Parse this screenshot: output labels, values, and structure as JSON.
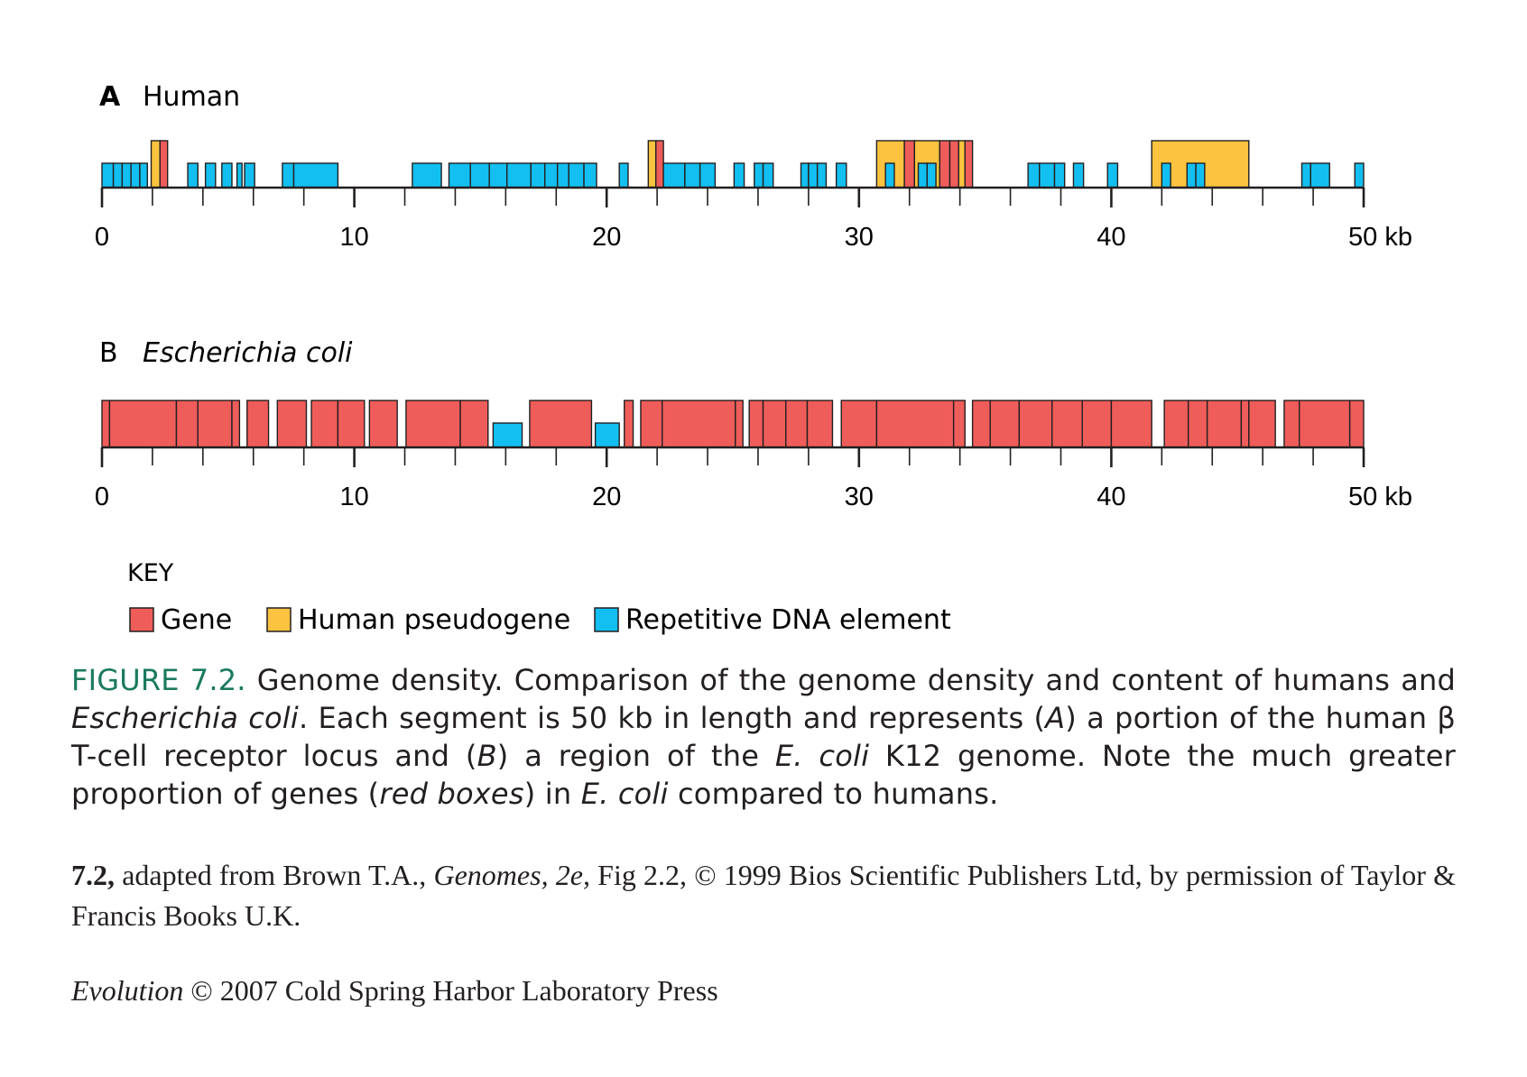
{
  "colors": {
    "gene": "#ef5d5a",
    "pseudogene": "#fbc33f",
    "repetitive": "#12bff0",
    "stroke": "#231f20",
    "figure_label": "#1a7a5e"
  },
  "panels": [
    {
      "letter": "A",
      "name": "Human",
      "tick_labels": [
        "0",
        "10",
        "20",
        "30",
        "40",
        "50 kb"
      ],
      "features": [
        {
          "type": "repetitive",
          "start": 0.0,
          "end": 0.45
        },
        {
          "type": "repetitive",
          "start": 0.45,
          "end": 0.8
        },
        {
          "type": "repetitive",
          "start": 0.8,
          "end": 1.15
        },
        {
          "type": "repetitive",
          "start": 1.15,
          "end": 1.5
        },
        {
          "type": "repetitive",
          "start": 1.5,
          "end": 1.8
        },
        {
          "type": "pseudogene",
          "start": 1.95,
          "end": 2.3,
          "tall": true
        },
        {
          "type": "gene",
          "start": 2.3,
          "end": 2.6,
          "tall": true
        },
        {
          "type": "repetitive",
          "start": 3.4,
          "end": 3.8
        },
        {
          "type": "repetitive",
          "start": 4.1,
          "end": 4.5
        },
        {
          "type": "repetitive",
          "start": 4.75,
          "end": 5.15
        },
        {
          "type": "repetitive",
          "start": 5.35,
          "end": 5.55
        },
        {
          "type": "repetitive",
          "start": 5.65,
          "end": 6.05
        },
        {
          "type": "repetitive",
          "start": 7.15,
          "end": 7.6
        },
        {
          "type": "repetitive",
          "start": 7.6,
          "end": 9.35
        },
        {
          "type": "repetitive",
          "start": 12.3,
          "end": 13.45
        },
        {
          "type": "repetitive",
          "start": 13.75,
          "end": 14.6
        },
        {
          "type": "repetitive",
          "start": 14.6,
          "end": 15.35
        },
        {
          "type": "repetitive",
          "start": 15.35,
          "end": 16.05
        },
        {
          "type": "repetitive",
          "start": 16.05,
          "end": 17.0
        },
        {
          "type": "repetitive",
          "start": 17.0,
          "end": 17.55
        },
        {
          "type": "repetitive",
          "start": 17.55,
          "end": 18.05
        },
        {
          "type": "repetitive",
          "start": 18.05,
          "end": 18.5
        },
        {
          "type": "repetitive",
          "start": 18.5,
          "end": 19.1
        },
        {
          "type": "repetitive",
          "start": 19.1,
          "end": 19.6
        },
        {
          "type": "repetitive",
          "start": 20.5,
          "end": 20.85
        },
        {
          "type": "pseudogene",
          "start": 21.65,
          "end": 21.95,
          "tall": true
        },
        {
          "type": "gene",
          "start": 21.95,
          "end": 22.25,
          "tall": true
        },
        {
          "type": "repetitive",
          "start": 22.25,
          "end": 23.1
        },
        {
          "type": "repetitive",
          "start": 23.1,
          "end": 23.7
        },
        {
          "type": "repetitive",
          "start": 23.7,
          "end": 24.3
        },
        {
          "type": "repetitive",
          "start": 25.05,
          "end": 25.45
        },
        {
          "type": "repetitive",
          "start": 25.85,
          "end": 26.2
        },
        {
          "type": "repetitive",
          "start": 26.2,
          "end": 26.6
        },
        {
          "type": "repetitive",
          "start": 27.7,
          "end": 28.0
        },
        {
          "type": "repetitive",
          "start": 28.0,
          "end": 28.35
        },
        {
          "type": "repetitive",
          "start": 28.35,
          "end": 28.7
        },
        {
          "type": "repetitive",
          "start": 29.1,
          "end": 29.5
        },
        {
          "type": "pseudogene",
          "start": 30.7,
          "end": 31.8,
          "tall": true
        },
        {
          "type": "repetitive",
          "start": 31.05,
          "end": 31.4
        },
        {
          "type": "gene",
          "start": 31.8,
          "end": 32.2,
          "tall": true
        },
        {
          "type": "pseudogene",
          "start": 32.2,
          "end": 33.2,
          "tall": true
        },
        {
          "type": "repetitive",
          "start": 32.35,
          "end": 32.7
        },
        {
          "type": "repetitive",
          "start": 32.7,
          "end": 33.05
        },
        {
          "type": "gene",
          "start": 33.2,
          "end": 33.6,
          "tall": true
        },
        {
          "type": "gene",
          "start": 33.6,
          "end": 33.95,
          "tall": true
        },
        {
          "type": "pseudogene",
          "start": 33.95,
          "end": 34.2,
          "tall": true
        },
        {
          "type": "gene",
          "start": 34.2,
          "end": 34.5,
          "tall": true
        },
        {
          "type": "repetitive",
          "start": 36.7,
          "end": 37.15
        },
        {
          "type": "repetitive",
          "start": 37.15,
          "end": 37.75
        },
        {
          "type": "repetitive",
          "start": 37.75,
          "end": 38.15
        },
        {
          "type": "repetitive",
          "start": 38.5,
          "end": 38.9
        },
        {
          "type": "repetitive",
          "start": 39.85,
          "end": 40.25
        },
        {
          "type": "pseudogene",
          "start": 41.6,
          "end": 45.45,
          "tall": true
        },
        {
          "type": "repetitive",
          "start": 42.0,
          "end": 42.35
        },
        {
          "type": "repetitive",
          "start": 43.0,
          "end": 43.35
        },
        {
          "type": "repetitive",
          "start": 43.35,
          "end": 43.7
        },
        {
          "type": "repetitive",
          "start": 47.55,
          "end": 47.9
        },
        {
          "type": "repetitive",
          "start": 47.9,
          "end": 48.65
        },
        {
          "type": "repetitive",
          "start": 49.65,
          "end": 50.0
        }
      ]
    },
    {
      "letter": "B",
      "name": "Escherichia coli",
      "tick_labels": [
        "0",
        "10",
        "20",
        "30",
        "40",
        "50 kb"
      ],
      "features": [
        {
          "type": "gene",
          "start": 0.0,
          "end": 0.3,
          "tall": true
        },
        {
          "type": "gene",
          "start": 0.3,
          "end": 2.95,
          "tall": true
        },
        {
          "type": "gene",
          "start": 2.95,
          "end": 3.8,
          "tall": true
        },
        {
          "type": "gene",
          "start": 3.8,
          "end": 5.15,
          "tall": true
        },
        {
          "type": "gene",
          "start": 5.15,
          "end": 5.45,
          "tall": true
        },
        {
          "type": "gene",
          "start": 5.75,
          "end": 6.6,
          "tall": true
        },
        {
          "type": "gene",
          "start": 6.95,
          "end": 8.1,
          "tall": true
        },
        {
          "type": "gene",
          "start": 8.3,
          "end": 9.35,
          "tall": true
        },
        {
          "type": "gene",
          "start": 9.35,
          "end": 10.4,
          "tall": true
        },
        {
          "type": "gene",
          "start": 10.6,
          "end": 11.7,
          "tall": true
        },
        {
          "type": "gene",
          "start": 12.05,
          "end": 14.2,
          "tall": true
        },
        {
          "type": "gene",
          "start": 14.2,
          "end": 15.3,
          "tall": true
        },
        {
          "type": "repetitive",
          "start": 15.5,
          "end": 16.65
        },
        {
          "type": "gene",
          "start": 16.95,
          "end": 19.4,
          "tall": true
        },
        {
          "type": "repetitive",
          "start": 19.55,
          "end": 20.5
        },
        {
          "type": "gene",
          "start": 20.7,
          "end": 21.05,
          "tall": true
        },
        {
          "type": "gene",
          "start": 21.35,
          "end": 22.2,
          "tall": true
        },
        {
          "type": "gene",
          "start": 22.2,
          "end": 25.1,
          "tall": true
        },
        {
          "type": "gene",
          "start": 25.1,
          "end": 25.4,
          "tall": true
        },
        {
          "type": "gene",
          "start": 25.65,
          "end": 26.2,
          "tall": true
        },
        {
          "type": "gene",
          "start": 26.2,
          "end": 27.1,
          "tall": true
        },
        {
          "type": "gene",
          "start": 27.1,
          "end": 27.95,
          "tall": true
        },
        {
          "type": "gene",
          "start": 27.95,
          "end": 28.95,
          "tall": true
        },
        {
          "type": "gene",
          "start": 29.3,
          "end": 30.7,
          "tall": true
        },
        {
          "type": "gene",
          "start": 30.7,
          "end": 33.75,
          "tall": true
        },
        {
          "type": "gene",
          "start": 33.75,
          "end": 34.2,
          "tall": true
        },
        {
          "type": "gene",
          "start": 34.5,
          "end": 35.2,
          "tall": true
        },
        {
          "type": "gene",
          "start": 35.2,
          "end": 36.35,
          "tall": true
        },
        {
          "type": "gene",
          "start": 36.35,
          "end": 37.65,
          "tall": true
        },
        {
          "type": "gene",
          "start": 37.65,
          "end": 38.85,
          "tall": true
        },
        {
          "type": "gene",
          "start": 38.85,
          "end": 40.0,
          "tall": true
        },
        {
          "type": "gene",
          "start": 40.0,
          "end": 41.6,
          "tall": true
        },
        {
          "type": "gene",
          "start": 42.1,
          "end": 43.05,
          "tall": true
        },
        {
          "type": "gene",
          "start": 43.05,
          "end": 43.8,
          "tall": true
        },
        {
          "type": "gene",
          "start": 43.8,
          "end": 45.15,
          "tall": true
        },
        {
          "type": "gene",
          "start": 45.15,
          "end": 45.45,
          "tall": true
        },
        {
          "type": "gene",
          "start": 45.45,
          "end": 46.5,
          "tall": true
        },
        {
          "type": "gene",
          "start": 46.85,
          "end": 47.45,
          "tall": true
        },
        {
          "type": "gene",
          "start": 47.45,
          "end": 49.45,
          "tall": true
        },
        {
          "type": "gene",
          "start": 49.45,
          "end": 50.0,
          "tall": true
        }
      ]
    }
  ],
  "key": {
    "title": "KEY",
    "items": [
      {
        "type": "gene",
        "label": "Gene"
      },
      {
        "type": "pseudogene",
        "label": "Human pseudogene"
      },
      {
        "type": "repetitive",
        "label": "Repetitive DNA element"
      }
    ]
  },
  "caption": {
    "figure_number": "FIGURE 7.2.",
    "part1": " Genome density. Comparison of the genome density and content of humans and ",
    "organism_italic": "Escherichia coli",
    "part2": ". Each segment is 50 kb in length and represents (",
    "a_italic": "A",
    "part3": ") a portion of the human β T-cell receptor locus and (",
    "b_italic": "B",
    "part4": ") a region of the ",
    "ecoli_italic": "E. coli",
    "part5": " K12 genome. Note the much greater proportion of genes (",
    "red_boxes_italic": "red boxes",
    "part6": ") in ",
    "ecoli2_italic": "E. coli",
    "part7": " compared to humans."
  },
  "credit": {
    "bold_ref": "7.2,",
    "part1": " adapted from Brown T.A., ",
    "book_italic": "Genomes, 2e,",
    "part2": " Fig 2.2, © 1999 Bios Scientific Publishers Ltd, by permission of Taylor & Francis Books U.K."
  },
  "press": {
    "italic": "Evolution",
    "text": " © 2007 Cold Spring Harbor Laboratory Press"
  }
}
